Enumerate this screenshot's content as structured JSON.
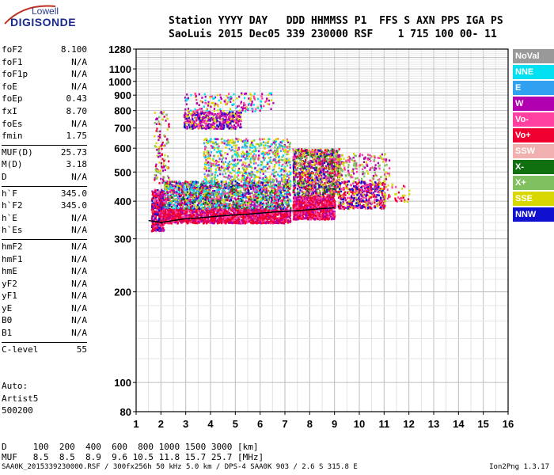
{
  "logo": {
    "line1": "Lowell",
    "line2": "DIGISONDE"
  },
  "header": {
    "line1": "Station YYYY DAY   DDD HHMMSS P1  FFS S AXN PPS IGA PS",
    "line2": "SaoLuis 2015 Dec05 339 230000 RSF    1 715 100 00- 11"
  },
  "params": {
    "group1": [
      {
        "label": "foF2",
        "value": "8.100"
      },
      {
        "label": "foF1",
        "value": "N/A"
      },
      {
        "label": "foF1p",
        "value": "N/A"
      },
      {
        "label": "foE",
        "value": "N/A"
      },
      {
        "label": "foEp",
        "value": "0.43"
      },
      {
        "label": "fxI",
        "value": "8.70"
      },
      {
        "label": "foEs",
        "value": "N/A"
      },
      {
        "label": "fmin",
        "value": "1.75"
      }
    ],
    "group2": [
      {
        "label": "MUF(D)",
        "value": "25.73"
      },
      {
        "label": "M(D)",
        "value": "3.18"
      },
      {
        "label": "D",
        "value": "N/A"
      }
    ],
    "group3": [
      {
        "label": "h`F",
        "value": "345.0"
      },
      {
        "label": "h`F2",
        "value": "345.0"
      },
      {
        "label": "h`E",
        "value": "N/A"
      },
      {
        "label": "h`Es",
        "value": "N/A"
      }
    ],
    "group4": [
      {
        "label": "hmF2",
        "value": "N/A"
      },
      {
        "label": "hmF1",
        "value": "N/A"
      },
      {
        "label": "hmE",
        "value": "N/A"
      },
      {
        "label": "yF2",
        "value": "N/A"
      },
      {
        "label": "yF1",
        "value": "N/A"
      },
      {
        "label": "yE",
        "value": "N/A"
      },
      {
        "label": "B0",
        "value": "N/A"
      },
      {
        "label": "B1",
        "value": "N/A"
      }
    ],
    "group5": [
      {
        "label": "C-level",
        "value": "55"
      }
    ]
  },
  "auto": {
    "line1": "Auto:",
    "line2": "Artist5",
    "line3": "500200"
  },
  "dmuf": {
    "line1": "D     100  200  400  600  800 1000 1500 3000 [km]",
    "line2": "MUF   8.5  8.5  8.9  9.6 10.5 11.8 15.7 25.7 [MHz]"
  },
  "footer": {
    "left": "SAA0K_2015339230000.RSF / 300fx256h 50 kHz 5.0 km / DPS-4 SAA0K 903 / 2.6 S 315.8 E",
    "right": "Ion2Png 1.3.17"
  },
  "legend": [
    {
      "label": "NoVal",
      "color": "#999999"
    },
    {
      "label": "NNE",
      "color": "#00e0f0"
    },
    {
      "label": "E",
      "color": "#30a0f0"
    },
    {
      "label": "W",
      "color": "#b000b0"
    },
    {
      "label": "Vo-",
      "color": "#ff40a0"
    },
    {
      "label": "Vo+",
      "color": "#f00030"
    },
    {
      "label": "SSW",
      "color": "#f0b0b0"
    },
    {
      "label": "X-",
      "color": "#107010"
    },
    {
      "label": "X+",
      "color": "#80c060"
    },
    {
      "label": "SSE",
      "color": "#d8d800"
    },
    {
      "label": "NNW",
      "color": "#1010d0"
    }
  ],
  "chart_data": {
    "type": "scatter",
    "xlabel": "",
    "ylabel": "",
    "xlim": [
      1,
      16
    ],
    "x_ticks": [
      "1",
      "2",
      "3",
      "4",
      "5",
      "6",
      "7",
      "8",
      "9",
      "10",
      "11",
      "12",
      "13",
      "14",
      "15",
      "16"
    ],
    "y_log": true,
    "ylim": [
      80,
      1280
    ],
    "y_ticks": [
      "80",
      "100",
      "200",
      "300",
      "400",
      "500",
      "600",
      "700",
      "800",
      "900",
      "1000",
      "1100",
      "1280"
    ],
    "grid": true,
    "legend_position": "right",
    "trace": {
      "x": [
        1.5,
        2.0,
        2.5,
        3.0,
        3.5,
        4.0,
        4.5,
        5.0,
        5.5,
        6.0,
        6.5,
        7.0,
        7.5,
        8.0,
        8.5,
        9.0
      ],
      "y": [
        345,
        340,
        345,
        350,
        352,
        355,
        358,
        360,
        362,
        365,
        368,
        370,
        372,
        375,
        378,
        380
      ]
    },
    "clusters": [
      {
        "x": [
          1.6,
          2.1
        ],
        "y": [
          320,
          440
        ],
        "n": 420,
        "colors": [
          "#f00030",
          "#f00030",
          "#b000b0",
          "#ff40a0",
          "#1010d0"
        ]
      },
      {
        "x": [
          2.1,
          7.2
        ],
        "y": [
          340,
          380
        ],
        "n": 1600,
        "colors": [
          "#f00030",
          "#f00030",
          "#f00030",
          "#ff40a0",
          "#b000b0"
        ]
      },
      {
        "x": [
          2.1,
          7.2
        ],
        "y": [
          380,
          470
        ],
        "n": 1800,
        "colors": [
          "#d8d800",
          "#ff40a0",
          "#b000b0",
          "#f00030",
          "#80c060",
          "#1010d0",
          "#30a0f0",
          "#00e0f0",
          "#107010"
        ]
      },
      {
        "x": [
          3.7,
          7.2
        ],
        "y": [
          470,
          650
        ],
        "n": 700,
        "colors": [
          "#d8d800",
          "#d8d800",
          "#b000b0",
          "#ff40a0",
          "#30a0f0",
          "#00e0f0",
          "#80c060"
        ]
      },
      {
        "x": [
          2.9,
          5.2
        ],
        "y": [
          700,
          800
        ],
        "n": 500,
        "colors": [
          "#b000b0",
          "#b000b0",
          "#ff40a0",
          "#d8d800",
          "#1010d0"
        ]
      },
      {
        "x": [
          2.9,
          6.5
        ],
        "y": [
          800,
          920
        ],
        "n": 180,
        "colors": [
          "#d8d800",
          "#b000b0",
          "#ff40a0",
          "#00e0f0"
        ]
      },
      {
        "x": [
          1.7,
          2.3
        ],
        "y": [
          450,
          800
        ],
        "n": 120,
        "colors": [
          "#b000b0",
          "#d8d800",
          "#f00030",
          "#80c060"
        ]
      },
      {
        "x": [
          7.3,
          9.0
        ],
        "y": [
          350,
          420
        ],
        "n": 900,
        "colors": [
          "#f00030",
          "#f00030",
          "#ff40a0",
          "#b000b0"
        ]
      },
      {
        "x": [
          7.3,
          9.2
        ],
        "y": [
          420,
          600
        ],
        "n": 1100,
        "colors": [
          "#ff40a0",
          "#b000b0",
          "#d8d800",
          "#f00030",
          "#107010",
          "#80c060",
          "#1010d0"
        ]
      },
      {
        "x": [
          9.1,
          11.0
        ],
        "y": [
          380,
          470
        ],
        "n": 500,
        "colors": [
          "#f00030",
          "#ff40a0",
          "#b000b0",
          "#d8d800",
          "#1010d0"
        ]
      },
      {
        "x": [
          9.0,
          11.2
        ],
        "y": [
          470,
          580
        ],
        "n": 200,
        "colors": [
          "#d8d800",
          "#ff40a0",
          "#b000b0",
          "#80c060"
        ]
      },
      {
        "x": [
          11.0,
          12.0
        ],
        "y": [
          400,
          460
        ],
        "n": 40,
        "colors": [
          "#f00030",
          "#ff40a0",
          "#d8d800"
        ]
      }
    ]
  }
}
